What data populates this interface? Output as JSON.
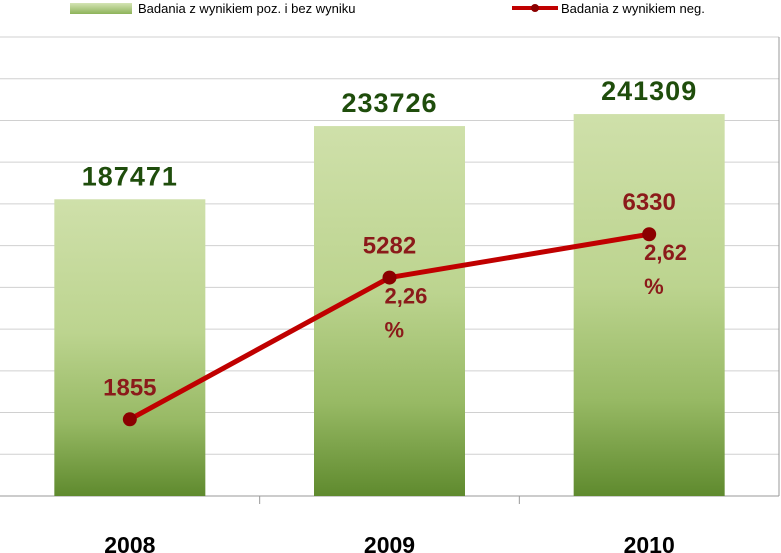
{
  "chart_data": {
    "type": "bar",
    "categories": [
      "2008",
      "2009",
      "2010"
    ],
    "series": [
      {
        "name": "Badania z wynikiem poz. i bez wyniku",
        "type": "bar",
        "values": [
          187471,
          233726,
          241309
        ],
        "color": "#9cbf6a"
      },
      {
        "name": "Badania z wynikiem neg.",
        "type": "line",
        "values": [
          1855,
          5282,
          6330
        ],
        "color": "#c00000"
      }
    ],
    "bar_labels": [
      "187471",
      "233726",
      "241309"
    ],
    "line_labels": [
      "1855",
      "5282",
      "6330"
    ],
    "percent_labels": [
      "",
      "2,26\n%",
      "2,62\n%"
    ],
    "bar_axis_range": [
      0,
      290000
    ],
    "line_axis_range": [
      0,
      11100
    ],
    "gridlines": true
  },
  "legend": {
    "bar_label": "Badania z wynikiem poz. i bez wyniku",
    "line_label": "Badania z wynikiem neg."
  },
  "colors": {
    "bar_light": "#cfe0aa",
    "bar_mid": "#a9c67c",
    "bar_dark": "#5f8a2e",
    "line": "#c00000",
    "marker": "#8b0000",
    "grid": "#d0d0d0",
    "axis": "#999999"
  }
}
